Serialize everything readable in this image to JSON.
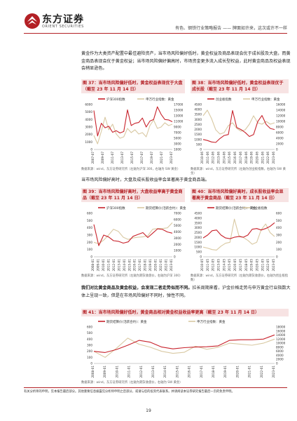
{
  "header": {
    "logo_cn": "东方证券",
    "logo_en": "ORIENT SECURITIES",
    "report_title": "有色、钢铁行业策略报告 —— 牌面如许来，这次或许不一样"
  },
  "paragraphs": {
    "p1": "黄金作为大类资产配置中最佳避险资产，当市场风险偏好低时，黄金权益及商品表现会优于成长股及大盘，而黄金商品表现会优于黄金权益；当市场风险偏好偏高时，市场资金更多流入成长型权益，此时黄金商品及权益表现会稍显逊色。",
    "p2": "当市场风险偏好高时，大盘及成长股收益率会显著高于黄金商品端。",
    "p3_bold": "我们对比黄金商品及黄金权益，会发现二者走势似而不同。",
    "p3": "拉长周期来看，沪金价格走势与申万黄金行业指数大体上呈现一致，但是在市场风险偏好不同时，弹性不同。"
  },
  "figures": {
    "f37": {
      "title": "图 37：当市场风险偏好低时，黄金权益表现优于大盘（截至 23 年 11 月 14 日）",
      "source": "数据来源：wind，东方证券研究所（左轴为沪深 300，右轴为 SW 黄金）"
    },
    "f38": {
      "title": "图 38：当市场风险偏好低时，黄金权益表现优于成长股（截至 23 年 11 月 14 日）",
      "source": "数据来源：wind，东方证券研究所（左轴为创业板指数，右轴为 SW 黄金）"
    },
    "f39": {
      "title": "图 39：当市场风险偏好高时，大盘收益率高于黄金商品（截至 23 年 11 月 14 日）",
      "source": "数据来源：wind，东方证券研究所（左轴为期货收盘价，右轴为沪深 300）"
    },
    "f40": {
      "title": "图 40：当市场风险偏好高时，成长股收益率会显著高于黄金商品（截至 23 年 11 月 14 日）",
      "source": "数据来源：wind，东方证券研究所（左轴为期货收盘价，右轴为创业板指数）"
    },
    "f41": {
      "title": "图 41：当市场风险偏好低时，黄金商品相对黄金权益收益率更高（截至 23 年 11 月 14 日）",
      "source": "数据来源：wind，东方证券研究所（左轴为期货收盘价，右轴为 SW 黄金）"
    }
  },
  "chart_data": [
    {
      "type": "line",
      "title": "图 37：当市场风险偏好低时，黄金权益表现优于大盘（截至 23 年 11 月 14 日）",
      "x_ticks": [
        "2007-07",
        "2009-07",
        "2011-07",
        "2013-07",
        "2015-07",
        "2017-07",
        "2019-07",
        "2021-07",
        "2023-07"
      ],
      "left_axis": {
        "ticks": [
          "0",
          "1000",
          "2000",
          "3000",
          "4000",
          "5000",
          "6000"
        ],
        "ylim": [
          0,
          6000
        ]
      },
      "right_axis": {
        "ticks": [
          "1000",
          "3000",
          "5000",
          "7000",
          "9000",
          "11000",
          "13000",
          "15000",
          "17000"
        ],
        "ylim": [
          1000,
          17000
        ]
      },
      "series": [
        {
          "name": "沪深300指数",
          "axis": "left",
          "color": "#c8232c",
          "values": [
            5200,
            1800,
            3500,
            2900,
            3100,
            2300,
            2500,
            2200,
            2400,
            5300,
            3200,
            3500,
            3600,
            4200,
            3000,
            3800,
            4000,
            5700,
            4700,
            4000,
            3950,
            3700
          ]
        },
        {
          "name": "申万行业指数：黄金",
          "axis": "right",
          "color": "#d9c9a3",
          "values": [
            6000,
            3000,
            7500,
            12500,
            8000,
            10000,
            6500,
            5000,
            5500,
            8500,
            7000,
            8000,
            6500,
            7000,
            5500,
            9500,
            11500,
            8500,
            9000,
            10500,
            9500,
            10000
          ]
        }
      ]
    },
    {
      "type": "line",
      "title": "图 38：当市场风险偏好低时，黄金权益表现优于成长股（截至 23 年 11 月 14 日）",
      "x_ticks": [
        "2010-06",
        "2011-06",
        "2012-06",
        "2013-06",
        "2014-06",
        "2015-06",
        "2016-06",
        "2017-06",
        "2018-06",
        "2019-06",
        "2020-06",
        "2021-06",
        "2022-06",
        "2023-06"
      ],
      "left_axis": {
        "ticks": [
          "0",
          "500",
          "1000",
          "1500",
          "2000",
          "2500",
          "3000",
          "3500",
          "4000",
          "4500"
        ],
        "ylim": [
          0,
          4500
        ]
      },
      "right_axis": {
        "ticks": [
          "0",
          "2000",
          "4000",
          "6000",
          "8000",
          "10000",
          "12000",
          "14000",
          "16000"
        ],
        "ylim": [
          0,
          16000
        ]
      },
      "series": [
        {
          "name": "创业板指数",
          "axis": "left",
          "color": "#c8232c",
          "values": [
            1000,
            900,
            750,
            700,
            1100,
            1400,
            1500,
            3900,
            2200,
            2000,
            1700,
            1300,
            1500,
            2800,
            3400,
            2500,
            2100,
            2000
          ]
        },
        {
          "name": "申万行业指数：黄金",
          "axis": "right",
          "color": "#d9c9a3",
          "values": [
            12000,
            14000,
            11000,
            7000,
            5500,
            6000,
            8500,
            9500,
            7500,
            6500,
            7000,
            9000,
            12000,
            9500,
            9000,
            10000,
            9000,
            9500
          ]
        }
      ]
    },
    {
      "type": "line",
      "title": "图 39：当市场风险偏好高时，大盘收益率高于黄金商品（截至 23 年 11 月 14 日）",
      "x_ticks": [
        "2008-01",
        "2009-01",
        "2010-01",
        "2011-01",
        "2012-01",
        "2013-01",
        "2014-01",
        "2015-01",
        "2016-01",
        "2017-01",
        "2018-01",
        "2019-01",
        "2020-01",
        "2021-01",
        "2022-01",
        "2023-01"
      ],
      "left_axis": {
        "ticks": [
          "0",
          "100",
          "200",
          "300",
          "400",
          "500",
          "600"
        ],
        "ylim": [
          0,
          600
        ]
      },
      "right_axis": {
        "ticks": [
          "0",
          "1000",
          "2000",
          "3000",
          "4000",
          "5000",
          "6000",
          "7000"
        ],
        "ylim": [
          0,
          7000
        ]
      },
      "series": [
        {
          "name": "沪深300指数",
          "axis": "right",
          "color": "#c8232c",
          "values": [
            5200,
            1800,
            3500,
            3200,
            2600,
            2500,
            2200,
            2400,
            3300,
            3600,
            3900,
            3100,
            3800,
            4500,
            4400,
            4000,
            3800
          ]
        },
        {
          "name": "期货结算价(活跃合约)：黄金",
          "axis": "left",
          "color": "#d9c9a3",
          "values": [
            200,
            180,
            230,
            300,
            380,
            350,
            270,
            240,
            260,
            270,
            275,
            290,
            380,
            390,
            390,
            400,
            470
          ]
        }
      ]
    },
    {
      "type": "line",
      "title": "图 40：当市场风险偏好高时，成长股收益率会显著高于黄金商品（截至 23 年 11 月 14 日）",
      "x_ticks": [
        "2010-05",
        "2011-05",
        "2012-05",
        "2013-05",
        "2014-05",
        "2015-05",
        "2016-05",
        "2017-05",
        "2018-05",
        "2019-05",
        "2020-05",
        "2021-05",
        "2022-05",
        "2023-05"
      ],
      "left_axis": {
        "ticks": [
          "0",
          "500",
          "1000",
          "1500",
          "2000",
          "2500",
          "3000",
          "3500",
          "4000",
          "4500"
        ],
        "ylim": [
          0,
          4500
        ]
      },
      "right_axis": {
        "ticks": [
          "0",
          "100",
          "200",
          "300",
          "400",
          "500",
          "600"
        ],
        "ylim": [
          0,
          600
        ]
      },
      "series": [
        {
          "name": "期货结算价(活跃合约)：黄金",
          "axis": "right",
          "color": "#c8232c",
          "values": [
            260,
            300,
            360,
            370,
            300,
            260,
            250,
            270,
            280,
            270,
            300,
            380,
            390,
            370,
            390,
            420,
            470
          ]
        },
        {
          "name": "创业板指数",
          "axis": "left",
          "color": "#d9c9a3",
          "values": [
            1000,
            900,
            750,
            700,
            1100,
            1400,
            1500,
            3900,
            2200,
            2000,
            1700,
            1300,
            1500,
            2800,
            3400,
            2500,
            2100
          ]
        }
      ]
    },
    {
      "type": "line",
      "title": "图 41：当市场风险偏好低时，黄金商品相对黄金权益收益率更高（截至 23 年 11 月 14 日）",
      "x_ticks": [
        "2008-01",
        "2009-01",
        "2010-01",
        "2011-01",
        "2012-01",
        "2013-01",
        "2014-01",
        "2015-01",
        "2016-01",
        "2017-01",
        "2018-01",
        "2019-01",
        "2020-01",
        "2021-01",
        "2022-01",
        "2023-01"
      ],
      "left_axis": {
        "ticks": [
          "0",
          "100",
          "200",
          "300",
          "400",
          "500",
          "600"
        ],
        "ylim": [
          0,
          600
        ]
      },
      "right_axis": {
        "ticks": [
          "0",
          "2000",
          "4000",
          "6000",
          "8000",
          "10000",
          "12000",
          "14000",
          "16000",
          "18000"
        ],
        "ylim": [
          0,
          18000
        ]
      },
      "series": [
        {
          "name": "期货结算价(活跃合约)：黄金",
          "axis": "left",
          "color": "#c8232c",
          "values": [
            200,
            180,
            230,
            300,
            380,
            350,
            270,
            240,
            260,
            270,
            275,
            290,
            380,
            390,
            390,
            400,
            470
          ]
        },
        {
          "name": "申万行业指数：黄金",
          "axis": "right",
          "color": "#d9c9a3",
          "values": [
            6000,
            3000,
            7500,
            12500,
            9500,
            8000,
            6000,
            5000,
            5500,
            8500,
            7000,
            8000,
            10000,
            9500,
            9000,
            10000,
            12000
          ]
        }
      ]
    }
  ],
  "disclaimer": "有关分析师的申明，见本报告最后部分。其他重要信息披露见分析师申明之后部分，或请与您的投资代表联系。并请阅读本证券研究报告最后一页的免责申明。",
  "page_number": "19"
}
